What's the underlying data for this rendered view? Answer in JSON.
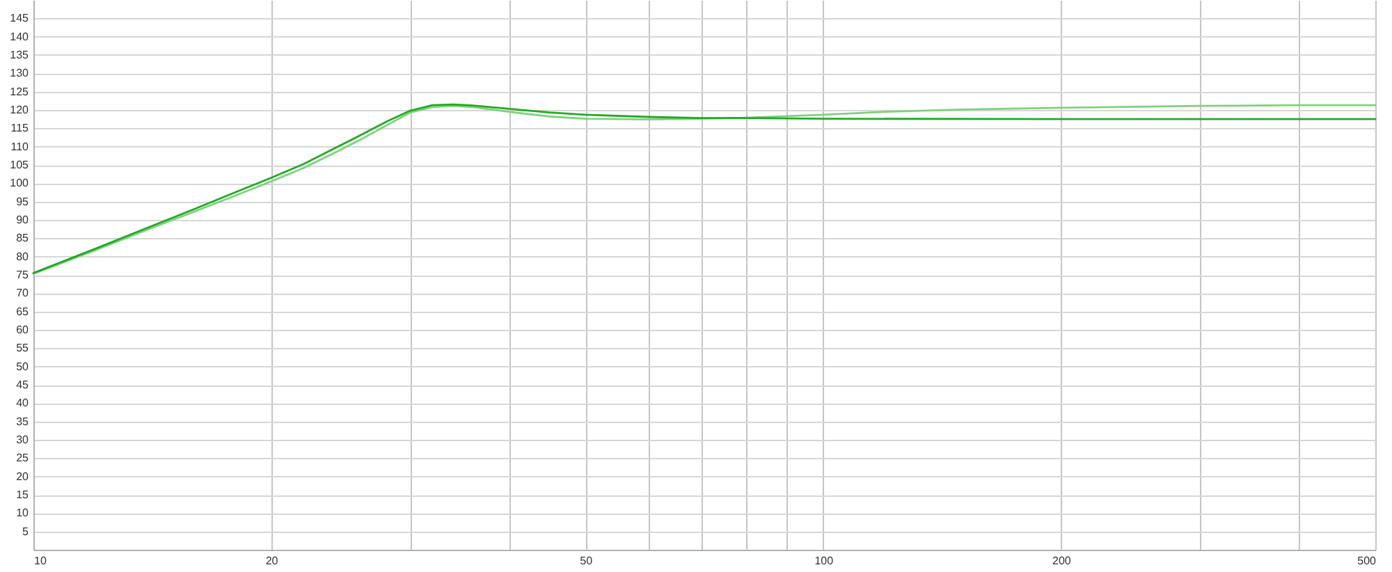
{
  "chart_data": {
    "type": "line",
    "log": "x",
    "grid": true,
    "xlim": [
      10,
      500
    ],
    "ylim": [
      0,
      150
    ],
    "xticks": [
      10,
      20,
      {
        "value": 30,
        "label": null
      },
      {
        "value": 40,
        "label": null
      },
      50,
      {
        "value": 60,
        "label": null
      },
      {
        "value": 70,
        "label": null
      },
      {
        "value": 80,
        "label": null
      },
      {
        "value": 90,
        "label": null
      },
      100,
      200,
      {
        "value": 300,
        "label": null
      },
      {
        "value": 400,
        "label": null
      },
      500
    ],
    "yticks": [
      5,
      10,
      15,
      20,
      25,
      30,
      35,
      40,
      45,
      50,
      55,
      60,
      65,
      70,
      75,
      80,
      85,
      90,
      95,
      100,
      105,
      110,
      115,
      120,
      125,
      130,
      135,
      140,
      145
    ],
    "series": [
      {
        "color": "#7fd17f",
        "x": [
          10,
          12,
          14,
          16,
          18,
          20,
          22,
          24,
          26,
          28,
          30,
          32,
          34,
          36,
          40,
          45,
          50,
          60,
          70,
          80,
          90,
          100,
          120,
          150,
          200,
          300,
          400,
          500
        ],
        "values": [
          75.3,
          81.8,
          87.5,
          92.3,
          96.6,
          100.5,
          104.2,
          108.2,
          112,
          115.8,
          119.3,
          120.8,
          121.1,
          120.8,
          119.5,
          118.2,
          117.6,
          117.4,
          117.6,
          117.9,
          118.3,
          118.7,
          119.5,
          120.1,
          120.6,
          121.1,
          121.3,
          121.3
        ]
      },
      {
        "color": "#22aa22",
        "x": [
          10,
          12,
          14,
          16,
          18,
          20,
          22,
          24,
          26,
          28,
          30,
          32,
          34,
          36,
          40,
          45,
          50,
          60,
          70,
          80,
          100,
          200,
          500
        ],
        "values": [
          75.5,
          82.2,
          88,
          93,
          97.5,
          101.5,
          105.3,
          109.4,
          113.2,
          116.8,
          119.8,
          121.3,
          121.5,
          121.2,
          120.3,
          119.3,
          118.7,
          118.1,
          117.8,
          117.8,
          117.6,
          117.5,
          117.5
        ]
      }
    ]
  }
}
